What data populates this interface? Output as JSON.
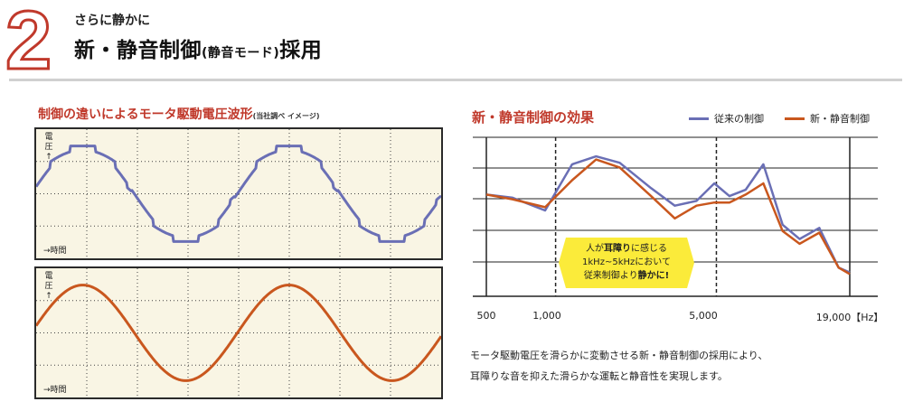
{
  "header": {
    "number": "2",
    "subtitle": "さらに静かに",
    "title_main": "新・静音制御",
    "title_paren": "(静音モード)",
    "title_tail": "採用"
  },
  "left_panel": {
    "title": "制御の違いによるモータ駆動電圧波形",
    "note": "(当社調べ イメージ)",
    "scope_top": {
      "y_label": "電圧↑",
      "x_label": "→時間"
    },
    "scope_bottom": {
      "y_label": "電圧↑",
      "x_label": "→時間"
    }
  },
  "right_panel": {
    "title": "新・静音制御の効果",
    "callout": {
      "line1_a": "人が",
      "line1_b": "耳障り",
      "line1_c": "に感じる",
      "line2": "1kHz~5kHzにおいて",
      "line3_a": "従来制御より",
      "line3_b": "静かに!"
    }
  },
  "description": {
    "line1": "モータ駆動電圧を滑らかに変動させる新・静音制御の採用により、",
    "line2": "耳障りな音を抑えた滑らかな運転と静音性を実現します。"
  },
  "colors": {
    "accent": "#c0392b",
    "conventional": "#6a6fb5",
    "new_control": "#c9571e",
    "scope_bg": "#f9f5e4",
    "callout": "#fbeb3a"
  },
  "chart_data": {
    "type": "line",
    "title": "新・静音制御の効果",
    "x_tick_labels": [
      "500",
      "1,000",
      "5,000",
      "19,000【Hz】"
    ],
    "x_scale": "log",
    "xlim": [
      500,
      19000
    ],
    "y_axis_labels": "none",
    "grid": "horizontal",
    "legend_position": "top-right",
    "markers_dashed_vertical_at": [
      1000,
      5000
    ],
    "series": [
      {
        "name": "従来の制御",
        "color": "#6a6fb5",
        "x": [
          500,
          650,
          900,
          1180,
          1500,
          1900,
          2600,
          3300,
          4100,
          4900,
          5700,
          6700,
          8000,
          9700,
          11500,
          14000,
          17000,
          19000
        ],
        "y": [
          64,
          62,
          54,
          83,
          88,
          84,
          68,
          57,
          60,
          71,
          63,
          67,
          83,
          45,
          36,
          43,
          18,
          15
        ]
      },
      {
        "name": "新・静音制御",
        "color": "#c9571e",
        "x": [
          500,
          650,
          900,
          1180,
          1500,
          1900,
          2600,
          3300,
          4100,
          4900,
          5700,
          6700,
          8000,
          9700,
          11500,
          14000,
          17000,
          19000
        ],
        "y": [
          64,
          61,
          56,
          73,
          86,
          81,
          63,
          49,
          57,
          59,
          59,
          64,
          71,
          41,
          33,
          40,
          18,
          14
        ]
      }
    ]
  },
  "waveform_data": [
    {
      "panel": "top",
      "type": "stepped-sine",
      "color": "#6a6fb5",
      "cycles": 2
    },
    {
      "panel": "bottom",
      "type": "sine",
      "color": "#c9571e",
      "cycles": 2
    }
  ]
}
